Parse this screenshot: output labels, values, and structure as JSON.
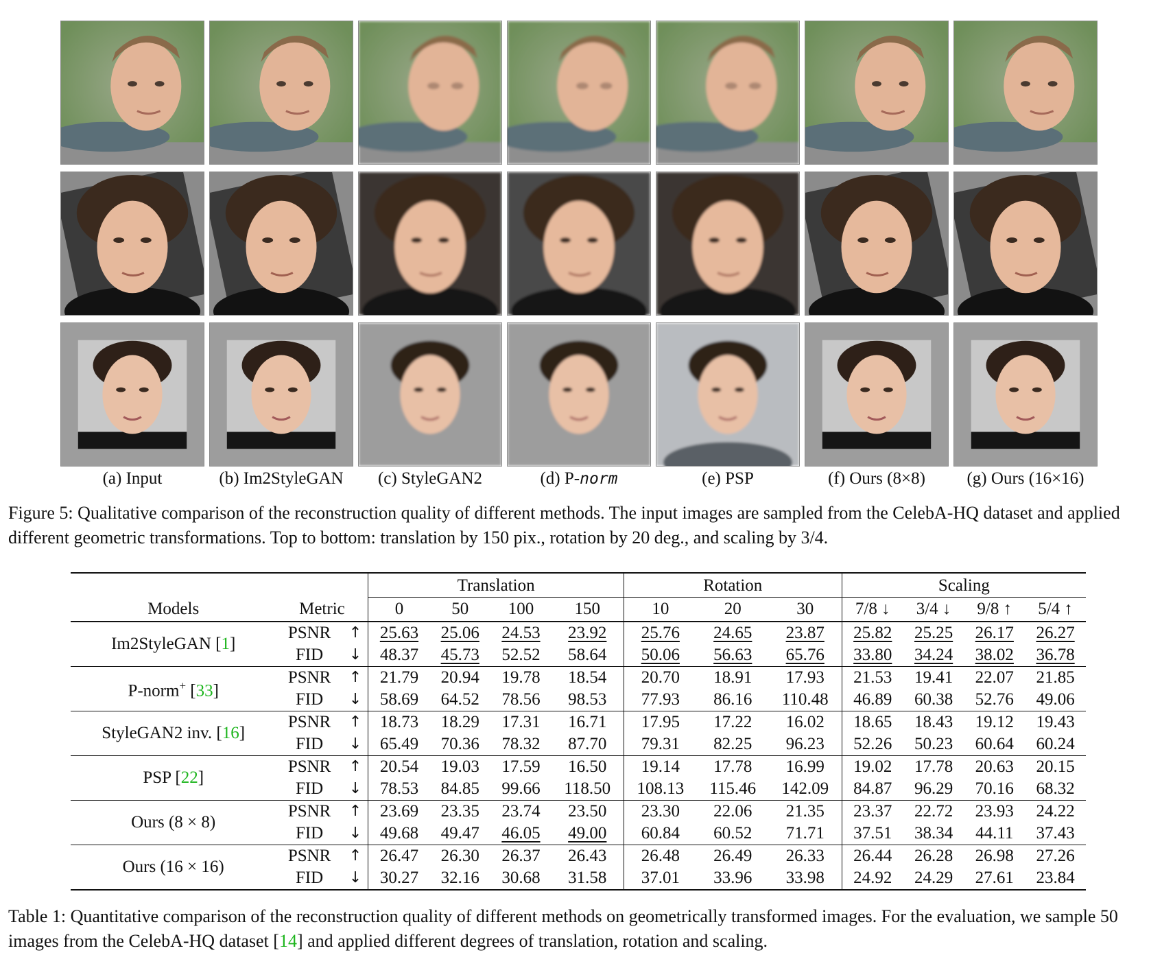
{
  "figure": {
    "column_labels": [
      {
        "prefix": "(a) Input",
        "italic": ""
      },
      {
        "prefix": "(b) Im2StyleGAN",
        "italic": ""
      },
      {
        "prefix": "(c) StyleGAN2",
        "italic": ""
      },
      {
        "prefix": "(d) P-",
        "italic": "norm"
      },
      {
        "prefix": "(e) PSP",
        "italic": ""
      },
      {
        "prefix": "(f) Ours (8×8)",
        "italic": ""
      },
      {
        "prefix": "(g) Ours (16×16)",
        "italic": ""
      }
    ],
    "caption": "Figure 5: Qualitative comparison of the reconstruction quality of different methods. The input images are sampled from the CelebA-HQ dataset and applied different geometric transformations. Top to bottom: translation by 150 pix., rotation by 20 deg., and scaling by 3/4."
  },
  "table": {
    "groups": [
      "Translation",
      "Rotation",
      "Scaling"
    ],
    "header_models": "Models",
    "header_metric": "Metric",
    "columns": [
      "0",
      "50",
      "100",
      "150",
      "10",
      "20",
      "30",
      "7/8 ↓",
      "3/4 ↓",
      "9/8 ↑",
      "5/4 ↑"
    ],
    "rows": [
      {
        "model": "Im2StyleGAN [",
        "cite": "1",
        "sup": "",
        "psnr": [
          "25.63",
          "25.06",
          "24.53",
          "23.92",
          "25.76",
          "24.65",
          "23.87",
          "25.82",
          "25.25",
          "26.17",
          "26.27"
        ],
        "fid": [
          "48.37",
          "45.73",
          "52.52",
          "58.64",
          "50.06",
          "56.63",
          "65.76",
          "33.80",
          "34.24",
          "38.02",
          "36.78"
        ]
      },
      {
        "model": "P-norm",
        "cite": "33",
        "sup": "+",
        "psnr": [
          "21.79",
          "20.94",
          "19.78",
          "18.54",
          "20.70",
          "18.91",
          "17.93",
          "21.53",
          "19.41",
          "22.07",
          "21.85"
        ],
        "fid": [
          "58.69",
          "64.52",
          "78.56",
          "98.53",
          "77.93",
          "86.16",
          "110.48",
          "46.89",
          "60.38",
          "52.76",
          "49.06"
        ]
      },
      {
        "model": "StyleGAN2 inv. [",
        "cite": "16",
        "sup": "",
        "psnr": [
          "18.73",
          "18.29",
          "17.31",
          "16.71",
          "17.95",
          "17.22",
          "16.02",
          "18.65",
          "18.43",
          "19.12",
          "19.43"
        ],
        "fid": [
          "65.49",
          "70.36",
          "78.32",
          "87.70",
          "79.31",
          "82.25",
          "96.23",
          "52.26",
          "50.23",
          "60.64",
          "60.24"
        ]
      },
      {
        "model": "PSP [",
        "cite": "22",
        "sup": "",
        "psnr": [
          "20.54",
          "19.03",
          "17.59",
          "16.50",
          "19.14",
          "17.78",
          "16.99",
          "19.02",
          "17.78",
          "20.63",
          "20.15"
        ],
        "fid": [
          "78.53",
          "84.85",
          "99.66",
          "118.50",
          "108.13",
          "115.46",
          "142.09",
          "84.87",
          "96.29",
          "70.16",
          "68.32"
        ]
      },
      {
        "model": "Ours (8 × 8)",
        "cite": "",
        "sup": "",
        "psnr": [
          "23.69",
          "23.35",
          "23.74",
          "23.50",
          "23.30",
          "22.06",
          "21.35",
          "23.37",
          "22.72",
          "23.93",
          "24.22"
        ],
        "fid": [
          "49.68",
          "49.47",
          "46.05",
          "49.00",
          "60.84",
          "60.52",
          "71.71",
          "37.51",
          "38.34",
          "44.11",
          "37.43"
        ]
      },
      {
        "model": "Ours (16 × 16)",
        "cite": "",
        "sup": "",
        "psnr": [
          "26.47",
          "26.30",
          "26.37",
          "26.43",
          "26.48",
          "26.49",
          "26.33",
          "26.44",
          "26.28",
          "26.98",
          "27.26"
        ],
        "fid": [
          "30.27",
          "32.16",
          "30.68",
          "31.58",
          "37.01",
          "33.96",
          "33.98",
          "24.92",
          "24.29",
          "27.61",
          "23.84"
        ]
      }
    ],
    "metric_labels": {
      "psnr": "PSNR",
      "fid": "FID",
      "up": "↑",
      "down": "↓"
    },
    "caption_part1": "Table 1: Quantitative comparison of the reconstruction quality of different methods on geometrically transformed images. For the evaluation, we sample 50 images from the CelebA-HQ dataset [",
    "caption_cite": "14",
    "caption_part2": "] and applied different degrees of translation, rotation and scaling."
  }
}
